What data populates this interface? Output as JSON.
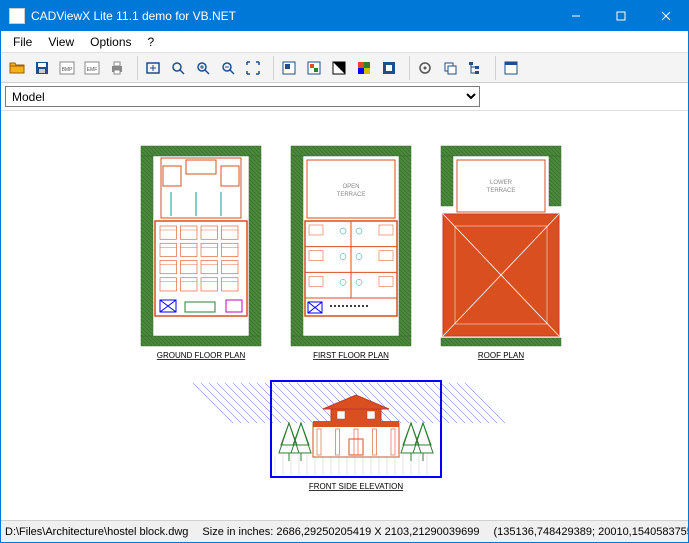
{
  "window": {
    "title": "CADViewX Lite 11.1 demo for VB.NET"
  },
  "menu": {
    "items": [
      "File",
      "View",
      "Options",
      "?"
    ]
  },
  "toolbar": {
    "icons": [
      {
        "name": "open-icon",
        "color": "#f2b01e",
        "kind": "folder"
      },
      {
        "name": "save-icon",
        "color": "#1e4e8c",
        "kind": "disk"
      },
      {
        "name": "bmp-icon",
        "color": "#888",
        "kind": "txt",
        "txt": "BMP"
      },
      {
        "name": "emf-icon",
        "color": "#888",
        "kind": "txt",
        "txt": "EMF"
      },
      {
        "name": "print-icon",
        "color": "#555",
        "kind": "printer"
      },
      {
        "sep": true
      },
      {
        "name": "fit-icon",
        "color": "#1e4e8c",
        "kind": "rect"
      },
      {
        "name": "zoom-icon",
        "color": "#1e4e8c",
        "kind": "mag"
      },
      {
        "name": "zoomin-icon",
        "color": "#1e4e8c",
        "kind": "magplus"
      },
      {
        "name": "zoomout-icon",
        "color": "#1e4e8c",
        "kind": "magminus"
      },
      {
        "name": "extents-icon",
        "color": "#1e4e8c",
        "kind": "corners"
      },
      {
        "sep": true
      },
      {
        "name": "layers-icon",
        "color": "#1e4e8c",
        "kind": "sq1"
      },
      {
        "name": "blocks-icon",
        "color": "#1e4e8c",
        "kind": "sq2"
      },
      {
        "name": "blackwhite-icon",
        "color": "#000",
        "kind": "bwsq"
      },
      {
        "name": "color-icon",
        "color": "#008000",
        "kind": "csq"
      },
      {
        "name": "background-icon",
        "color": "#1e4e8c",
        "kind": "sq3"
      },
      {
        "sep": true
      },
      {
        "name": "pan-icon",
        "color": "#555",
        "kind": "circ"
      },
      {
        "name": "copy-icon",
        "color": "#1e4e8c",
        "kind": "copy"
      },
      {
        "name": "entities-icon",
        "color": "#1e4e8c",
        "kind": "tree"
      },
      {
        "sep": true
      },
      {
        "name": "about-icon",
        "color": "#1e4e8c",
        "kind": "app"
      }
    ]
  },
  "layout": {
    "selected": "Model"
  },
  "drawing": {
    "labels": {
      "ground": "GROUND FLOOR PLAN",
      "first": "FIRST FLOOR PLAN",
      "roof": "ROOF PLAN",
      "front": "FRONT SIDE ELEVATION"
    },
    "colors": {
      "wall": "#d94f1f",
      "wall2": "#c0392b",
      "green": "#2e7d32",
      "cyan": "#00a0a0",
      "magenta": "#c000c0",
      "blue": "#0000ff",
      "yellow": "#d0c000",
      "black": "#000000",
      "hatch": "#3a6b2f",
      "grass": "#4a8a3a",
      "sky": "#0033cc"
    }
  },
  "status": {
    "file": "D:\\Files\\Architecture\\hostel block.dwg",
    "size": "Size in inches: 2686,29250205419 X 2103,21290039699",
    "coords": "(135136,748429389; 20010,1540583755"
  }
}
